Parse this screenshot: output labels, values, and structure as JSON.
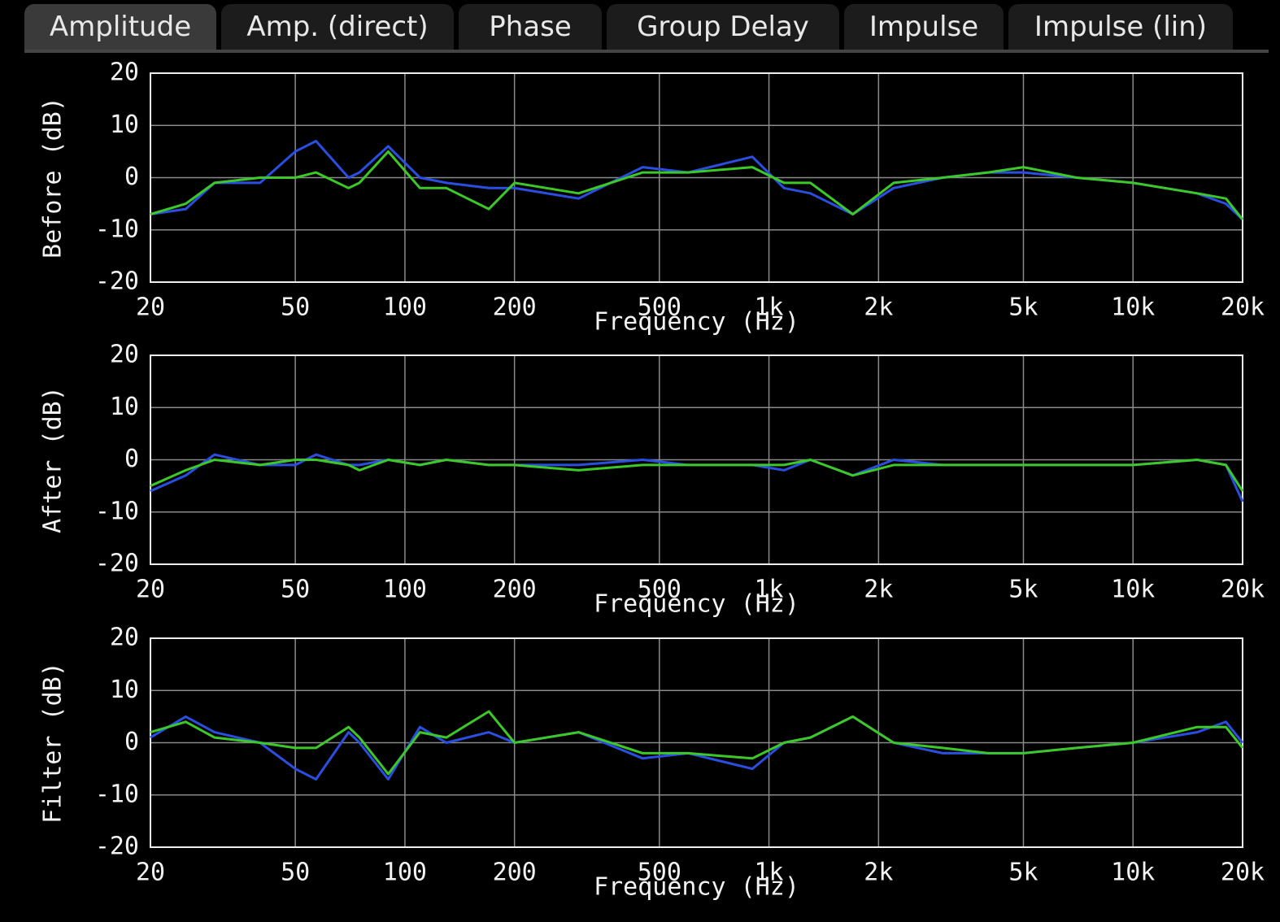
{
  "tabs": [
    "Amplitude",
    "Amp. (direct)",
    "Phase",
    "Group Delay",
    "Impulse",
    "Impulse (lin)"
  ],
  "chart_data": [
    {
      "type": "line",
      "ylabel": "Before (dB)",
      "xlabel": "Frequency (Hz)",
      "xscale": "log",
      "grid": true,
      "xlim": [
        20,
        20000
      ],
      "ylim": [
        -20,
        20
      ],
      "xticks": [
        20,
        50,
        100,
        200,
        500,
        {
          "value": 1000,
          "label": "1k"
        },
        {
          "value": 2000,
          "label": "2k"
        },
        {
          "value": 5000,
          "label": "5k"
        },
        {
          "value": 10000,
          "label": "10k"
        },
        {
          "value": 20000,
          "label": "20k"
        }
      ],
      "yticks": [
        -20,
        -10,
        0,
        10,
        20
      ],
      "x": [
        20,
        25,
        30,
        40,
        50,
        57,
        70,
        75,
        90,
        110,
        130,
        170,
        200,
        300,
        450,
        600,
        900,
        1100,
        1300,
        1700,
        2200,
        3000,
        4000,
        5000,
        7000,
        10000,
        15000,
        18000,
        20000
      ],
      "series": [
        {
          "color": "#2a4fe0",
          "values": [
            -7,
            -6,
            -1,
            -1,
            5,
            7,
            0,
            1,
            6,
            0,
            -1,
            -2,
            -2,
            -4,
            2,
            1,
            4,
            -2,
            -3,
            -7,
            -2,
            0,
            1,
            1,
            0,
            -1,
            -3,
            -5,
            -8
          ]
        },
        {
          "color": "#3cc828",
          "values": [
            -7,
            -5,
            -1,
            0,
            0,
            1,
            -2,
            -1,
            5,
            -2,
            -2,
            -6,
            -1,
            -3,
            1,
            1,
            2,
            -1,
            -1,
            -7,
            -1,
            0,
            1,
            2,
            0,
            -1,
            -3,
            -4,
            -8
          ]
        }
      ]
    },
    {
      "type": "line",
      "ylabel": "After (dB)",
      "xlabel": "Frequency (Hz)",
      "xscale": "log",
      "grid": true,
      "xlim": [
        20,
        20000
      ],
      "ylim": [
        -20,
        20
      ],
      "xticks": [
        20,
        50,
        100,
        200,
        500,
        {
          "value": 1000,
          "label": "1k"
        },
        {
          "value": 2000,
          "label": "2k"
        },
        {
          "value": 5000,
          "label": "5k"
        },
        {
          "value": 10000,
          "label": "10k"
        },
        {
          "value": 20000,
          "label": "20k"
        }
      ],
      "yticks": [
        -20,
        -10,
        0,
        10,
        20
      ],
      "x": [
        20,
        25,
        30,
        40,
        50,
        57,
        70,
        75,
        90,
        110,
        130,
        170,
        200,
        300,
        450,
        600,
        900,
        1100,
        1300,
        1700,
        2200,
        3000,
        4000,
        5000,
        7000,
        10000,
        15000,
        18000,
        20000
      ],
      "series": [
        {
          "color": "#2a4fe0",
          "values": [
            -6,
            -3,
            1,
            -1,
            -1,
            1,
            -1,
            -1,
            0,
            -1,
            0,
            -1,
            -1,
            -1,
            0,
            -1,
            -1,
            -2,
            0,
            -3,
            0,
            -1,
            -1,
            -1,
            -1,
            -1,
            0,
            -1,
            -8
          ]
        },
        {
          "color": "#3cc828",
          "values": [
            -5,
            -2,
            0,
            -1,
            0,
            0,
            -1,
            -2,
            0,
            -1,
            0,
            -1,
            -1,
            -2,
            -1,
            -1,
            -1,
            -1,
            0,
            -3,
            -1,
            -1,
            -1,
            -1,
            -1,
            -1,
            0,
            -1,
            -6
          ]
        }
      ]
    },
    {
      "type": "line",
      "ylabel": "Filter (dB)",
      "xlabel": "Frequency (Hz)",
      "xscale": "log",
      "grid": true,
      "xlim": [
        20,
        20000
      ],
      "ylim": [
        -20,
        20
      ],
      "xticks": [
        20,
        50,
        100,
        200,
        500,
        {
          "value": 1000,
          "label": "1k"
        },
        {
          "value": 2000,
          "label": "2k"
        },
        {
          "value": 5000,
          "label": "5k"
        },
        {
          "value": 10000,
          "label": "10k"
        },
        {
          "value": 20000,
          "label": "20k"
        }
      ],
      "yticks": [
        -20,
        -10,
        0,
        10,
        20
      ],
      "x": [
        20,
        25,
        30,
        40,
        50,
        57,
        70,
        75,
        90,
        110,
        130,
        170,
        200,
        300,
        450,
        600,
        900,
        1100,
        1300,
        1700,
        2200,
        3000,
        4000,
        5000,
        7000,
        10000,
        15000,
        18000,
        20000
      ],
      "series": [
        {
          "color": "#2a4fe0",
          "values": [
            1,
            5,
            2,
            0,
            -5,
            -7,
            2,
            0,
            -7,
            3,
            0,
            2,
            0,
            2,
            -3,
            -2,
            -5,
            0,
            1,
            5,
            0,
            -2,
            -2,
            -2,
            -1,
            0,
            2,
            4,
            0
          ]
        },
        {
          "color": "#3cc828",
          "values": [
            2,
            4,
            1,
            0,
            -1,
            -1,
            3,
            1,
            -6,
            2,
            1,
            6,
            0,
            2,
            -2,
            -2,
            -3,
            0,
            1,
            5,
            0,
            -1,
            -2,
            -2,
            -1,
            0,
            3,
            3,
            -1
          ]
        }
      ]
    }
  ]
}
